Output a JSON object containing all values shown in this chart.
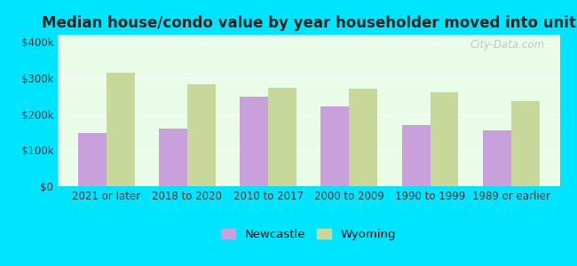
{
  "title": "Median house/condo value by year householder moved into unit",
  "categories": [
    "2021 or later",
    "2018 to 2020",
    "2010 to 2017",
    "2000 to 2009",
    "1990 to 1999",
    "1989 or earlier"
  ],
  "newcastle_values": [
    148000,
    160000,
    248000,
    220000,
    170000,
    155000
  ],
  "wyoming_values": [
    315000,
    283000,
    272000,
    270000,
    260000,
    235000
  ],
  "newcastle_color": "#c9a0dc",
  "wyoming_color": "#c8d89a",
  "background_color": "#e8fce8",
  "outer_background": "#00e5ff",
  "ylim": [
    0,
    420000
  ],
  "yticks": [
    0,
    100000,
    200000,
    300000,
    400000
  ],
  "ytick_labels": [
    "$0",
    "$100k",
    "$200k",
    "$300k",
    "$400k"
  ],
  "legend_newcastle": "Newcastle",
  "legend_wyoming": "Wyoming",
  "watermark": "City-Data.com",
  "title_fontsize": 12,
  "tick_fontsize": 8.5,
  "legend_fontsize": 9.5
}
